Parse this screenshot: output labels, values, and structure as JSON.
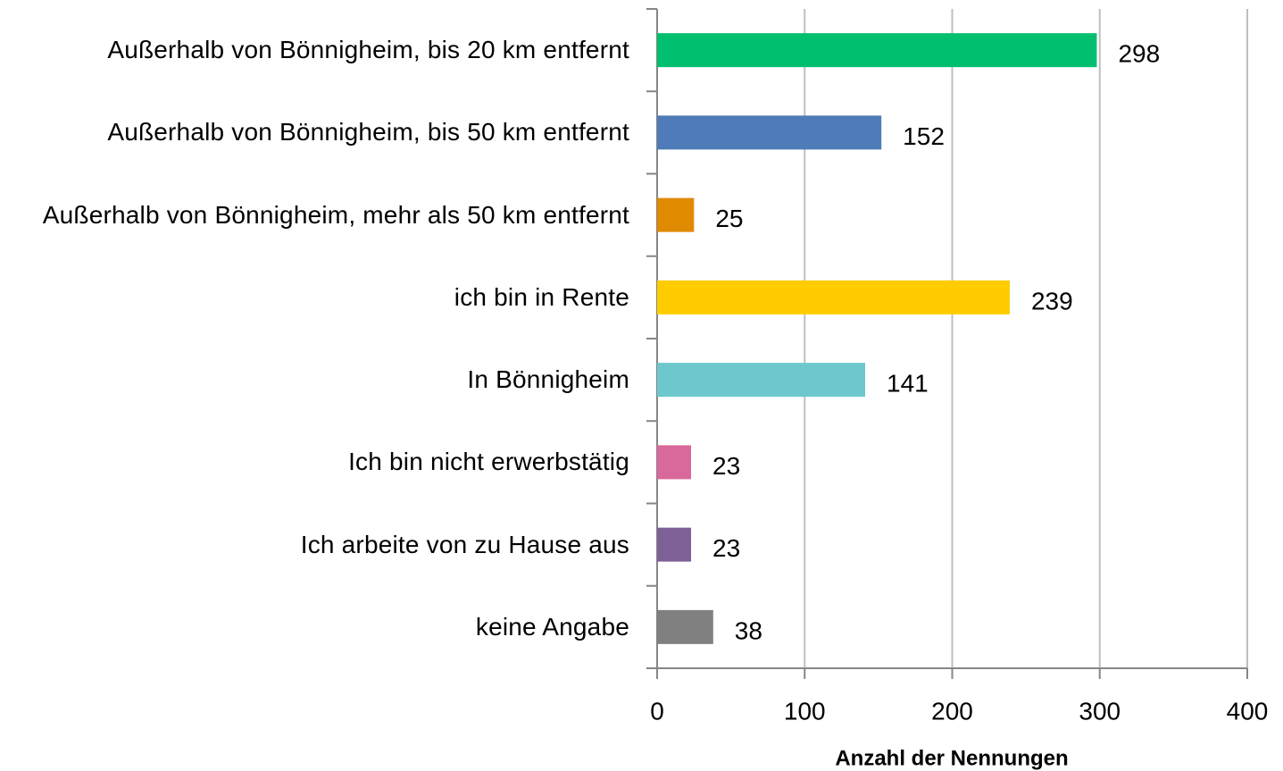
{
  "chart_data": {
    "type": "barh",
    "categories": [
      "Außerhalb von Bönnigheim, bis 20 km entfernt",
      "Außerhalb von Bönnigheim, bis 50 km entfernt",
      "Außerhalb von Bönnigheim, mehr als 50 km entfernt",
      "ich bin in Rente",
      "In Bönnigheim",
      "Ich bin nicht erwerbstätig",
      "Ich arbeite von zu Hause aus",
      "keine Angabe"
    ],
    "values": [
      298,
      152,
      25,
      239,
      141,
      23,
      23,
      38
    ],
    "colors": [
      "#00bf6f",
      "#4f7cb8",
      "#e08a00",
      "#ffcc00",
      "#6cc8cc",
      "#d9699a",
      "#7f6096",
      "#808080"
    ],
    "xlabel": "Anzahl der Nennungen",
    "xlim": [
      0,
      400
    ],
    "xticks": [
      0,
      100,
      200,
      300,
      400
    ],
    "grid": true
  }
}
